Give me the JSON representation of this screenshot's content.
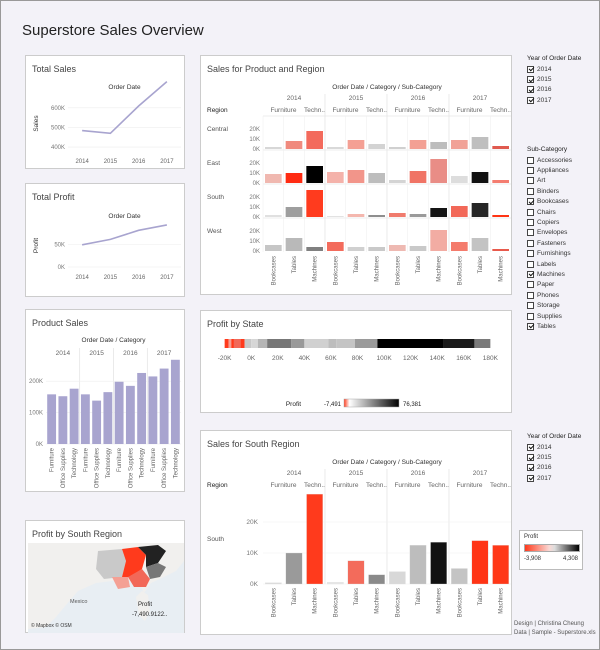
{
  "title": "Superstore Sales Overview",
  "total_sales": {
    "title": "Total Sales",
    "top_label": "Order Date",
    "ylabel": "Sales",
    "years": [
      "2014",
      "2015",
      "2016",
      "2017"
    ],
    "ticks": [
      "400K",
      "500K",
      "600K"
    ],
    "values": [
      484,
      470,
      609,
      733
    ],
    "ylim": [
      380,
      660
    ]
  },
  "total_profit": {
    "title": "Total Profit",
    "top_label": "Order Date",
    "ylabel": "Profit",
    "years": [
      "2014",
      "2015",
      "2016",
      "2017"
    ],
    "ticks": [
      "0K",
      "50K"
    ],
    "values": [
      49,
      61,
      81,
      93
    ],
    "ylim": [
      0,
      95
    ]
  },
  "product_sales": {
    "title": "Product Sales",
    "top_label": "Order Date / Category",
    "years": [
      "2014",
      "2015",
      "2016",
      "2017"
    ],
    "categories": [
      "Furniture",
      "Office Supplies",
      "Technology"
    ],
    "ticks": [
      "0K",
      "100K",
      "200K"
    ],
    "values": [
      158,
      152,
      176,
      158,
      138,
      165,
      198,
      185,
      226,
      215,
      240,
      268
    ],
    "ylim": [
      0,
      280
    ]
  },
  "sales_product_region": {
    "title": "Sales for Product and Region",
    "top_label": "Order Date / Category / Sub-Category",
    "region_label": "Region",
    "years": [
      "2014",
      "2015",
      "2016",
      "2017"
    ],
    "categories": [
      "Furniture",
      "Techn.."
    ],
    "subcats": [
      "Bookcases",
      "Tables",
      "Machines"
    ],
    "regions": [
      "Central",
      "East",
      "South",
      "West"
    ],
    "ticks": [
      "0K",
      "10K",
      "20K"
    ],
    "values": [
      [
        2,
        8,
        18,
        2,
        9,
        5,
        2,
        9,
        7,
        9,
        12,
        3
      ],
      [
        9,
        10,
        17,
        11,
        13,
        10,
        3,
        12,
        24,
        7,
        11,
        3
      ],
      [
        2,
        10,
        27,
        1,
        3,
        2,
        4,
        3,
        9,
        11,
        14,
        2
      ],
      [
        6,
        13,
        4,
        9,
        4,
        4,
        6,
        5,
        21,
        9,
        13,
        2
      ]
    ],
    "colors": [
      [
        "#d7d7d7",
        "#f08a7e",
        "#f36a5c",
        "#d9d9d9",
        "#f4a094",
        "#d3d3d3",
        "#d0d0d0",
        "#f3a094",
        "#bdbdbd",
        "#f1a297",
        "#bfbfbf",
        "#e05a4f"
      ],
      [
        "#f0b8b0",
        "#ff2b12",
        "#000000",
        "#f4b2aa",
        "#f2958a",
        "#bdbdbd",
        "#d4d4d4",
        "#f07465",
        "#e98d86",
        "#dddddd",
        "#121212",
        "#f47d70"
      ],
      [
        "#e0e0e0",
        "#9e9e9e",
        "#ff3b1e",
        "#e2e2e2",
        "#f4b7ae",
        "#8e8e8e",
        "#f07b6d",
        "#9a9a9a",
        "#141414",
        "#f26858",
        "#262626",
        "#ff3414"
      ],
      [
        "#c6c6c6",
        "#b9b9b9",
        "#808080",
        "#f36b5c",
        "#d0d0d0",
        "#c9c9c9",
        "#eeb9b2",
        "#c9c9c9",
        "#f2aca3",
        "#f47b6c",
        "#c3c3c3",
        "#e85a4c"
      ]
    ]
  },
  "profit_by_state": {
    "title": "Profit by State",
    "ticks": [
      "-20K",
      "0K",
      "20K",
      "40K",
      "60K",
      "80K",
      "100K",
      "120K",
      "140K",
      "160K",
      "180K"
    ],
    "legend_label": "Profit",
    "legend_min": "-7,491",
    "legend_max": "76,381"
  },
  "profit_south": {
    "title": "Profit by South Region",
    "legend_label": "Profit",
    "legend_value": "-7,490.9122..",
    "label_mexico": "Mexico",
    "attribution": "© Mapbox © OSM"
  },
  "sales_south": {
    "title": "Sales for South Region",
    "top_label": "Order Date / Category / Sub-Category",
    "region_label": "Region",
    "region": "South",
    "years": [
      "2014",
      "2015",
      "2016",
      "2017"
    ],
    "categories": [
      "Furniture",
      "Techn.."
    ],
    "subcats": [
      "Bookcases",
      "Tables",
      "Machines"
    ],
    "ticks": [
      "0K",
      "10K",
      "20K"
    ],
    "values": [
      0.4,
      10,
      29,
      0.6,
      7.5,
      3,
      4,
      12.5,
      13.5,
      5,
      14,
      12.5
    ],
    "ylim": [
      0,
      30
    ],
    "colors": [
      "#dcdcdc",
      "#9a9a9a",
      "#ff3a1c",
      "#e6e6e6",
      "#f36b5b",
      "#8a8a8a",
      "#d8d8d8",
      "#bdbdbd",
      "#111111",
      "#c4c4c4",
      "#ff3415",
      "#ff3818"
    ]
  },
  "filter_year_1": {
    "title": "Year of Order Date",
    "options": [
      {
        "label": "2014",
        "checked": true
      },
      {
        "label": "2015",
        "checked": true
      },
      {
        "label": "2016",
        "checked": true
      },
      {
        "label": "2017",
        "checked": true
      }
    ]
  },
  "filter_subcat": {
    "title": "Sub-Category",
    "options": [
      {
        "label": "Accessories",
        "checked": false
      },
      {
        "label": "Appliances",
        "checked": false
      },
      {
        "label": "Art",
        "checked": false
      },
      {
        "label": "Binders",
        "checked": false
      },
      {
        "label": "Bookcases",
        "checked": true
      },
      {
        "label": "Chairs",
        "checked": false
      },
      {
        "label": "Copiers",
        "checked": false
      },
      {
        "label": "Envelopes",
        "checked": false
      },
      {
        "label": "Fasteners",
        "checked": false
      },
      {
        "label": "Furnishings",
        "checked": false
      },
      {
        "label": "Labels",
        "checked": false
      },
      {
        "label": "Machines",
        "checked": true
      },
      {
        "label": "Paper",
        "checked": false
      },
      {
        "label": "Phones",
        "checked": false
      },
      {
        "label": "Storage",
        "checked": false
      },
      {
        "label": "Supplies",
        "checked": false
      },
      {
        "label": "Tables",
        "checked": true
      }
    ]
  },
  "filter_year_2": {
    "title": "Year of Order Date",
    "options": [
      {
        "label": "2014",
        "checked": true
      },
      {
        "label": "2015",
        "checked": true
      },
      {
        "label": "2016",
        "checked": true
      },
      {
        "label": "2017",
        "checked": true
      }
    ]
  },
  "profit_legend_right": {
    "label": "Profit",
    "min": "-3,908",
    "max": "4,308"
  },
  "credits": {
    "line1": "Design | Christina Cheung",
    "line2": "Data | Sample - Superstore.xls"
  },
  "colors": {
    "accent": "#a8a4cf",
    "positive": "#000000",
    "negative": "#ff3a1c"
  }
}
